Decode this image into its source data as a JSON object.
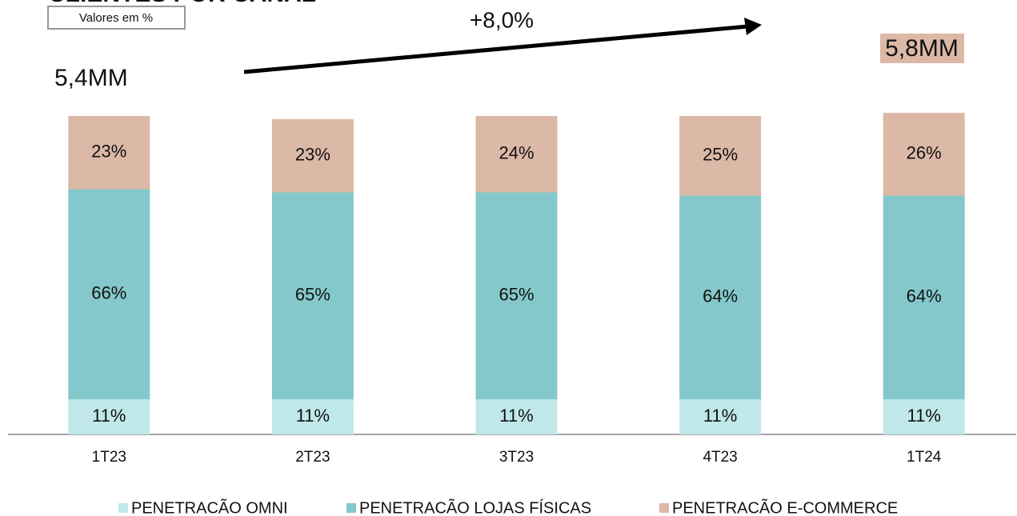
{
  "chart_data": {
    "type": "stacked_bar",
    "title": "CLIENTES POR CANAL",
    "subtitle": "Valores em %",
    "annotations": [
      "5,4MM",
      "+8,0%",
      "5,8MM"
    ],
    "categories": [
      "1T23",
      "2T23",
      "3T23",
      "4T23",
      "1T24"
    ],
    "series": [
      {
        "name": "PENETRACÃO OMNI",
        "color": "#c0e8ea",
        "values": [
          11,
          11,
          11,
          11,
          11
        ],
        "value_labels": [
          "11%",
          "11%",
          "11%",
          "11%",
          "11%"
        ]
      },
      {
        "name": "PENETRACÃO LOJAS FÍSICAS",
        "color": "#84c8cb",
        "values": [
          66,
          65,
          65,
          64,
          64
        ],
        "value_labels": [
          "66%",
          "65%",
          "65%",
          "64%",
          "64%"
        ]
      },
      {
        "name": "PENETRACÃO E-COMMERCE",
        "color": "#dcb8a6",
        "values": [
          23,
          23,
          24,
          25,
          26
        ],
        "value_labels": [
          "23%",
          "23%",
          "24%",
          "25%",
          "26%"
        ]
      }
    ],
    "ylim": [
      0,
      100
    ]
  }
}
